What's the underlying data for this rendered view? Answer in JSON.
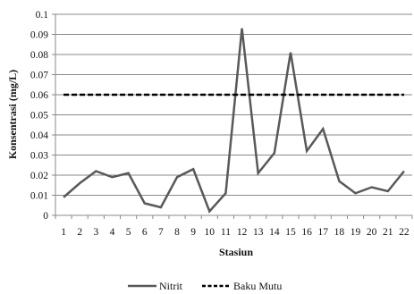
{
  "chart_data": {
    "type": "line",
    "xlabel": "Stasiun",
    "ylabel": "Konsentrasi (mg/L)",
    "categories": [
      "1",
      "2",
      "3",
      "4",
      "5",
      "6",
      "7",
      "8",
      "9",
      "10",
      "11",
      "12",
      "13",
      "14",
      "15",
      "16",
      "17",
      "18",
      "19",
      "20",
      "21",
      "22"
    ],
    "ylim": [
      0,
      0.1
    ],
    "yticks": [
      "0",
      "0.01",
      "0.02",
      "0.03",
      "0.04",
      "0.05",
      "0.06",
      "0.07",
      "0.08",
      "0.09",
      "0.1"
    ],
    "grid": true,
    "legend_position": "bottom",
    "series": [
      {
        "name": "Nitrit",
        "style": "solid",
        "color": "#595959",
        "values": [
          0.009,
          0.016,
          0.022,
          0.019,
          0.021,
          0.006,
          0.004,
          0.019,
          0.023,
          0.002,
          0.011,
          0.093,
          0.021,
          0.031,
          0.081,
          0.032,
          0.043,
          0.017,
          0.011,
          0.014,
          0.012,
          0.022
        ]
      },
      {
        "name": "Baku Mutu",
        "style": "dashed",
        "color": "#000000",
        "values": [
          0.06,
          0.06,
          0.06,
          0.06,
          0.06,
          0.06,
          0.06,
          0.06,
          0.06,
          0.06,
          0.06,
          0.06,
          0.06,
          0.06,
          0.06,
          0.06,
          0.06,
          0.06,
          0.06,
          0.06,
          0.06,
          0.06
        ]
      }
    ]
  }
}
